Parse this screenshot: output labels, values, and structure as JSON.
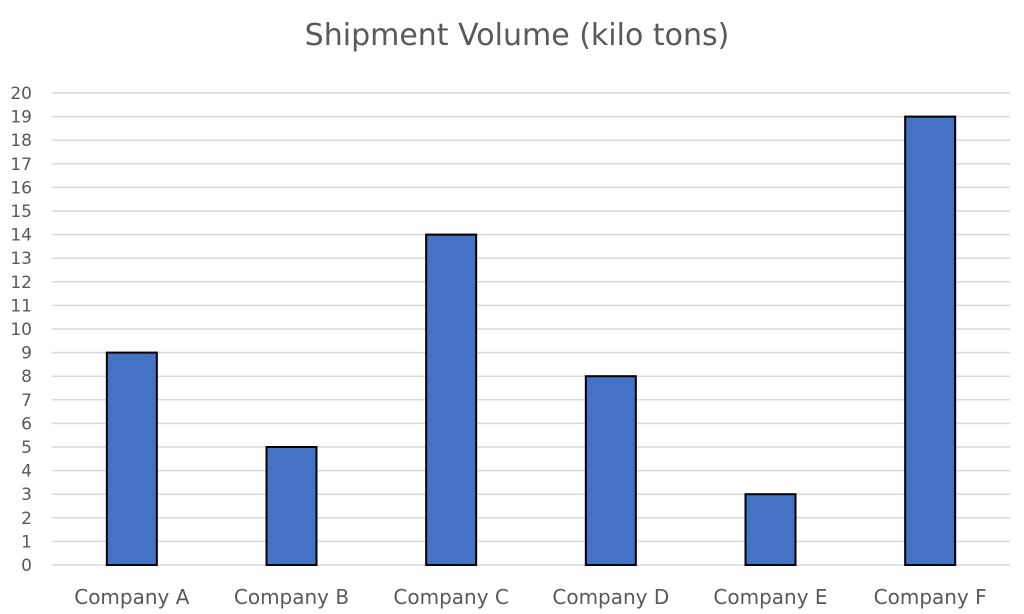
{
  "chart_data": {
    "type": "bar",
    "title": "Shipment Volume (kilo tons)",
    "categories": [
      "Company A",
      "Company B",
      "Company C",
      "Company D",
      "Company E",
      "Company F"
    ],
    "values": [
      9,
      5,
      14,
      8,
      3,
      19
    ],
    "ylim": [
      0,
      20
    ],
    "yticks": [
      0,
      1,
      2,
      3,
      4,
      5,
      6,
      7,
      8,
      9,
      10,
      11,
      12,
      13,
      14,
      15,
      16,
      17,
      18,
      19,
      20
    ],
    "grid": true,
    "legend": "none",
    "colors": {
      "bar_fill": "#4472C4",
      "bar_stroke": "#000000",
      "grid": "#d9d9d9",
      "text": "#595959"
    }
  }
}
